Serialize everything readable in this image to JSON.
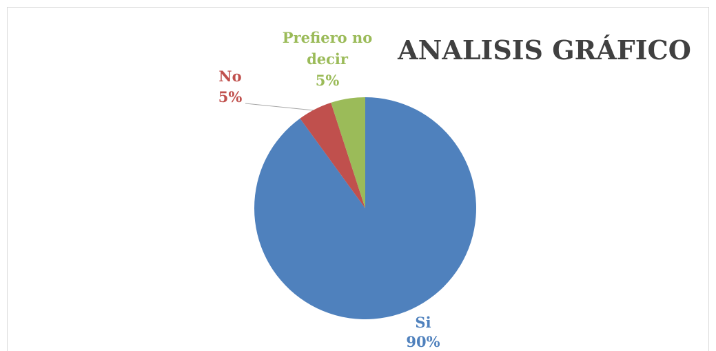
{
  "chart_data": {
    "type": "pie",
    "title": "ANALISIS GRÁFICO",
    "categories": [
      "Si",
      "No",
      "Prefiero no decir"
    ],
    "values": [
      90,
      5,
      5
    ],
    "value_labels": [
      "90%",
      "5%",
      "5%"
    ],
    "colors": [
      "#4f81bd",
      "#c0504d",
      "#9bbb59"
    ]
  }
}
